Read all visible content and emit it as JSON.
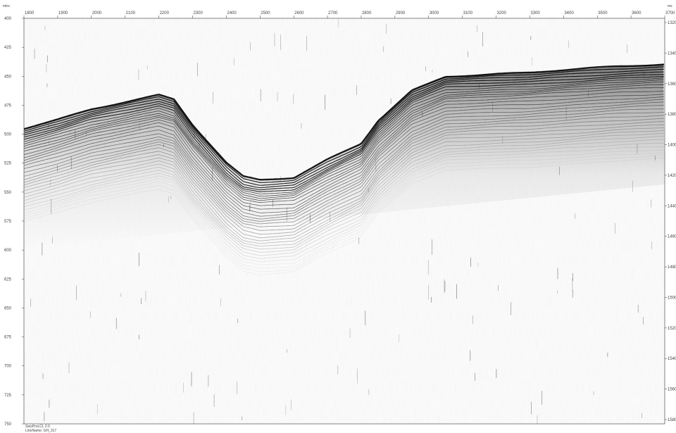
{
  "profile": {
    "top_axis_unit_label": "mtrs",
    "right_axis_unit_label": "ms",
    "top_ticks": [
      "1800",
      "1900",
      "2000",
      "2100",
      "2200",
      "2300",
      "2400",
      "2500",
      "2600",
      "2700",
      "2800",
      "2900",
      "3000",
      "3100",
      "3200",
      "3300",
      "3400",
      "3500",
      "3600",
      "3700"
    ],
    "left_ticks": [
      "400",
      "425",
      "450",
      "475",
      "500",
      "525",
      "550",
      "575",
      "600",
      "625",
      "650",
      "675",
      "700",
      "725",
      "750"
    ],
    "right_ticks": [
      "1320",
      "1340",
      "1360",
      "1380",
      "1400",
      "1420",
      "1440",
      "1460",
      "1480",
      "1500",
      "1520",
      "1540",
      "1560",
      "1580"
    ],
    "footer": {
      "line1": "SeisProLCL 2.0",
      "line2": "LineName: GH_317"
    },
    "seafloor_profile": {
      "x_range": [
        1800,
        3700
      ],
      "points": [
        [
          1800,
          495
        ],
        [
          1900,
          487
        ],
        [
          2000,
          478
        ],
        [
          2100,
          472
        ],
        [
          2200,
          466
        ],
        [
          2245,
          470
        ],
        [
          2300,
          492
        ],
        [
          2400,
          525
        ],
        [
          2450,
          537
        ],
        [
          2500,
          540
        ],
        [
          2600,
          538
        ],
        [
          2700,
          522
        ],
        [
          2800,
          508
        ],
        [
          2850,
          488
        ],
        [
          2950,
          462
        ],
        [
          3050,
          450
        ],
        [
          3200,
          448
        ],
        [
          3300,
          447
        ],
        [
          3400,
          445
        ],
        [
          3550,
          442
        ],
        [
          3700,
          440
        ]
      ],
      "depth_range": [
        400,
        750
      ]
    },
    "colors": {
      "background": "#ffffff",
      "reflector": "#000000",
      "frame": "#222222"
    }
  }
}
